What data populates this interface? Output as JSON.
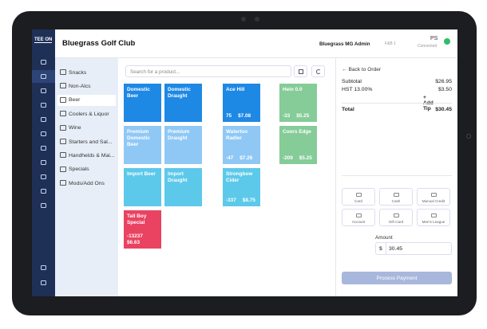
{
  "header": {
    "logo": "TEE ON",
    "title": "Bluegrass Golf Club",
    "user": "Bluegrass MG Admin",
    "station": "F&B 1",
    "status_initials": "PS",
    "status": "Connected"
  },
  "categories": {
    "items": [
      "Snacks",
      "Non-Alcs",
      "Beer",
      "Coolers & Liquor",
      "Wine",
      "Starters and Sal...",
      "Handhelds & Mai...",
      "Specials",
      "Mods/Add Ons"
    ],
    "selected": 2
  },
  "search": {
    "placeholder": "Search for a product..."
  },
  "product_columns": [
    [
      {
        "name": "Domestic Beer",
        "color": "#1e88e5"
      },
      {
        "name": "Premium Domestic Beer",
        "color": "#90c8f5"
      },
      {
        "name": "Import Beer",
        "color": "#5cc9ea"
      },
      {
        "name": "Tall Boy Special",
        "color": "#ea4261",
        "stock": -13237,
        "price": "$6.63"
      }
    ],
    [
      {
        "name": "Domestic Draught",
        "color": "#1e88e5"
      },
      {
        "name": "Premium Draught",
        "color": "#90c8f5"
      },
      {
        "name": "Import Draught",
        "color": "#5cc9ea"
      }
    ],
    [
      {
        "name": "Ace Hill",
        "color": "#1e88e5",
        "stock": 75,
        "price": "$7.08"
      },
      {
        "name": "Waterloo Radler",
        "color": "#90c8f5",
        "stock": -47,
        "price": "$7.26"
      },
      {
        "name": "Strongbow Cider",
        "color": "#5cc9ea",
        "stock": -337,
        "price": "$8.75"
      }
    ],
    [
      {
        "name": "Hein 0.0",
        "color": "#85cc98",
        "stock": -33,
        "price": "$5.25"
      },
      {
        "name": "Coors Edge",
        "color": "#85cc98",
        "stock": -209,
        "price": "$5.25"
      }
    ]
  ],
  "order": {
    "back": "Back to Order",
    "lines": [
      {
        "label": "Subtotal",
        "amount": "$26.95"
      },
      {
        "label": "HST 13.00%",
        "amount": "$3.50"
      }
    ],
    "add_tip": "+ Add Tip",
    "total": {
      "label": "Total",
      "amount": "$30.45"
    }
  },
  "payment": {
    "methods": [
      "Card",
      "Cash",
      "Manual Credit",
      "Account",
      "Gift Card",
      "Men's League"
    ],
    "amount_label": "Amount",
    "currency": "$",
    "amount": "30.45",
    "button": "Process Payment"
  }
}
